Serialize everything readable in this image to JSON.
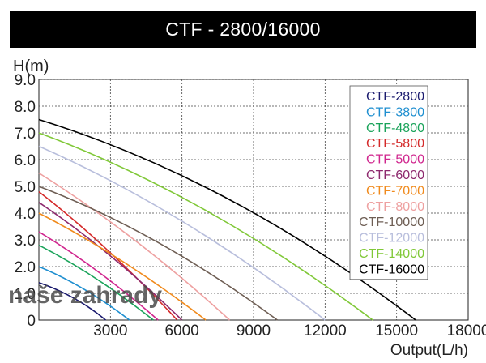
{
  "chart_data": {
    "type": "line",
    "title": "CTF - 2800/16000",
    "xlabel": "Output(L/h)",
    "ylabel": "H(m)",
    "xlim": [
      0,
      18000
    ],
    "ylim": [
      0,
      9.0
    ],
    "x_ticks": [
      3000,
      6000,
      9000,
      12000,
      15000,
      18000
    ],
    "x_tick_labels": [
      "3000",
      "6000",
      "9000",
      "12000",
      "15000",
      "18000"
    ],
    "y_ticks": [
      0,
      1,
      2,
      3,
      4,
      5,
      6,
      7,
      8,
      9
    ],
    "y_tick_labels": [
      "0",
      "1.0",
      "2.0",
      "3.0",
      "4.0",
      "5.0",
      "6.0",
      "7.0",
      "8.0",
      "9.0"
    ],
    "grid": true,
    "legend_position": "top-right",
    "series": [
      {
        "name": "CTF-2800",
        "color": "#1a1a6e",
        "x": [
          0,
          1500,
          2800
        ],
        "y": [
          1.4,
          0.8,
          0
        ]
      },
      {
        "name": "CTF-3800",
        "color": "#1f8fd0",
        "x": [
          0,
          1900,
          3800
        ],
        "y": [
          2.0,
          1.15,
          0
        ]
      },
      {
        "name": "CTF-4800",
        "color": "#1aa35a",
        "x": [
          0,
          2400,
          4800
        ],
        "y": [
          2.8,
          1.55,
          0
        ]
      },
      {
        "name": "CTF-5800",
        "color": "#d42a2a",
        "x": [
          0,
          2900,
          5800
        ],
        "y": [
          4.8,
          2.6,
          0
        ]
      },
      {
        "name": "CTF-5000",
        "color": "#d0268e",
        "x": [
          0,
          2500,
          5000
        ],
        "y": [
          3.3,
          1.8,
          0
        ]
      },
      {
        "name": "CTF-6000",
        "color": "#8e2a6e",
        "x": [
          0,
          3000,
          6000
        ],
        "y": [
          4.4,
          2.4,
          0
        ]
      },
      {
        "name": "CTF-7000",
        "color": "#f08a1c",
        "x": [
          0,
          3500,
          7000
        ],
        "y": [
          4.0,
          2.2,
          0
        ]
      },
      {
        "name": "CTF-8000",
        "color": "#eea0a0",
        "x": [
          0,
          4000,
          8000
        ],
        "y": [
          5.5,
          3.0,
          0
        ]
      },
      {
        "name": "CTF-10000",
        "color": "#6e5e54",
        "x": [
          0,
          5000,
          10000
        ],
        "y": [
          5.0,
          2.9,
          0
        ]
      },
      {
        "name": "CTF-12000",
        "color": "#b8bedc",
        "x": [
          0,
          6000,
          12000
        ],
        "y": [
          6.5,
          3.7,
          0
        ]
      },
      {
        "name": "CTF-14000",
        "color": "#80c838",
        "x": [
          0,
          7000,
          14000
        ],
        "y": [
          7.0,
          4.1,
          0
        ]
      },
      {
        "name": "CTF-16000",
        "color": "#000000",
        "x": [
          0,
          8000,
          15800
        ],
        "y": [
          7.5,
          4.5,
          0
        ]
      }
    ],
    "watermark": "naše zahrady"
  }
}
